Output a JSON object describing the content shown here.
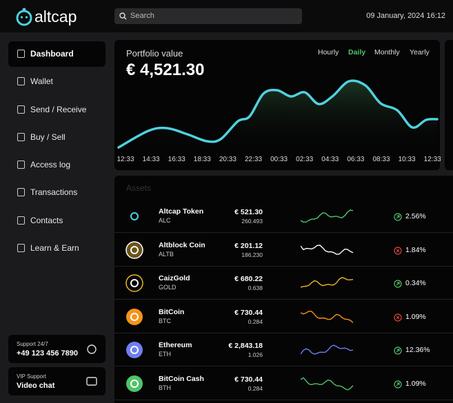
{
  "logo": "altcap",
  "search": "Search",
  "datetime": "09 January, 2024 16:12",
  "nav": [
    "Dashboard",
    "Wallet",
    "Send / Receive",
    "Buy / Sell",
    "Access log",
    "Transactions",
    "Contacts",
    "Learn & Earn"
  ],
  "support": [
    {
      "label": "Support 24/7",
      "value": "+49 123 456 7890"
    },
    {
      "label": "VIP Support",
      "value": "Video chat"
    }
  ],
  "portfolio": {
    "title": "Portfolio value",
    "value": "€ 4,521.30",
    "ranges": [
      "Hourly",
      "Daily",
      "Monthly",
      "Yearly"
    ],
    "active_range": 1,
    "x_labels": [
      "12:33",
      "14:33",
      "16:33",
      "18:33",
      "20:33",
      "22:33",
      "00:33",
      "02:33",
      "04:33",
      "06:33",
      "08:33",
      "10:33",
      "12:33"
    ]
  },
  "assets": {
    "title": "Assets",
    "rows": [
      {
        "name": "Altcap Token",
        "symbol": "ALC",
        "price": "€ 521.30",
        "amount": "260.493",
        "change": "2.56%",
        "direction": "up",
        "color": "#4fc36a"
      },
      {
        "name": "Altblock Coin",
        "symbol": "ALTB",
        "price": "€ 201.12",
        "amount": "186.230",
        "change": "1.84%",
        "direction": "down",
        "color": "#ffffff"
      },
      {
        "name": "CaizGold",
        "symbol": "GOLD",
        "price": "€ 680.22",
        "amount": "0.638",
        "change": "0.34%",
        "direction": "up",
        "color": "#e8b72c"
      },
      {
        "name": "BitCoin",
        "symbol": "BTC",
        "price": "€ 730.44",
        "amount": "0.284",
        "change": "1.09%",
        "direction": "down",
        "color": "#f7931a"
      },
      {
        "name": "Ethereum",
        "symbol": "ETH",
        "price": "€ 2,843.18",
        "amount": "1.026",
        "change": "12.36%",
        "direction": "up",
        "color": "#6f7ff0"
      },
      {
        "name": "BitCoin Cash",
        "symbol": "BTH",
        "price": "€ 730.44",
        "amount": "0.284",
        "change": "1.09%",
        "direction": "up",
        "color": "#4fc36a"
      }
    ]
  }
}
